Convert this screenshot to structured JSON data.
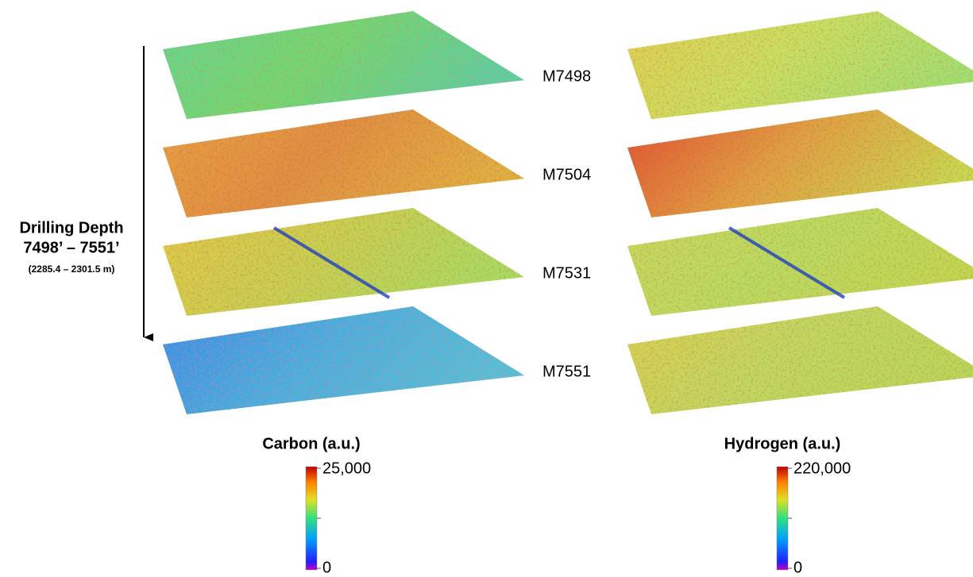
{
  "depth_axis": {
    "title": "Drilling Depth",
    "range_ft": "7498’ – 7551’",
    "range_m": "(2285.4 – 2301.5 m)"
  },
  "layers": [
    {
      "label": "M7498"
    },
    {
      "label": "M7504"
    },
    {
      "label": "M7531"
    },
    {
      "label": "M7551"
    }
  ],
  "colorbars": [
    {
      "title": "Carbon (a.u.)",
      "max_label": "25,000",
      "min_label": "0"
    },
    {
      "title": "Hydrogen (a.u.)",
      "max_label": "220,000",
      "min_label": "0"
    }
  ]
}
